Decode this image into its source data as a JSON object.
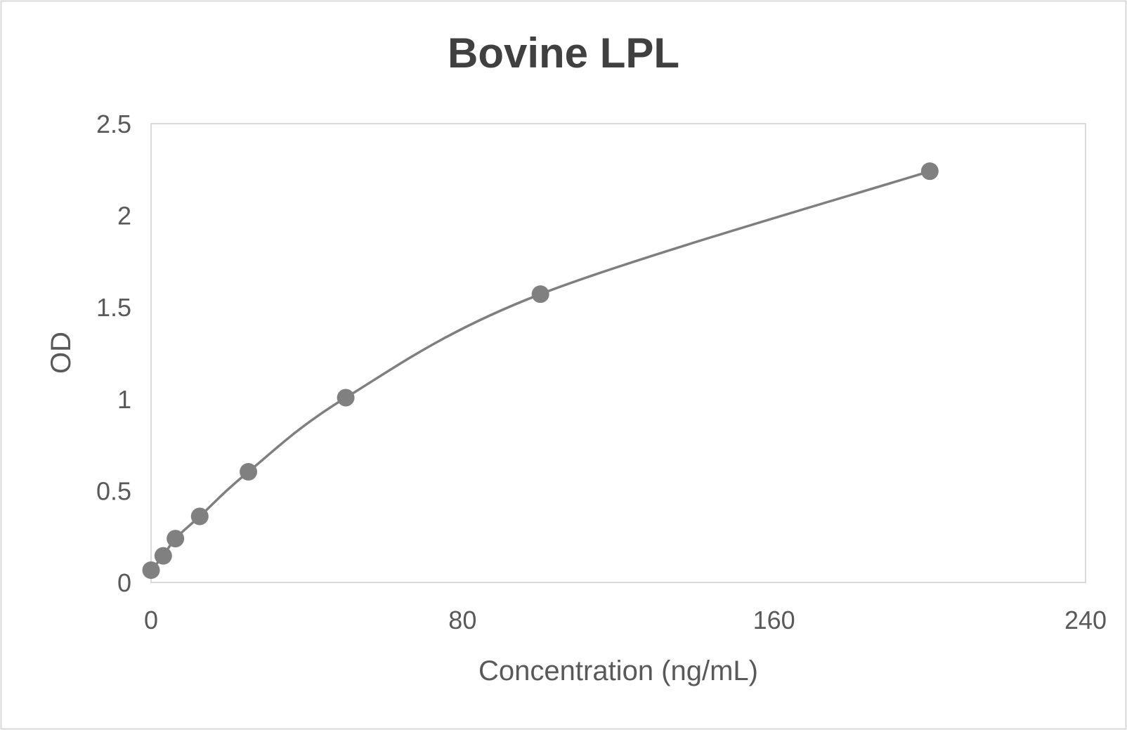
{
  "chart_data": {
    "type": "scatter",
    "title": "Bovine LPL",
    "xlabel": "Concentration (ng/mL)",
    "ylabel": "OD",
    "xlim": [
      0,
      240
    ],
    "ylim": [
      0,
      2.5
    ],
    "x_ticks": [
      "0",
      "80",
      "160",
      "240"
    ],
    "y_ticks": [
      "0",
      "0.5",
      "1",
      "1.5",
      "2",
      "2.5"
    ],
    "grid": false,
    "legend": "none",
    "smooth_line": true,
    "colors": {
      "series": "#7f7f7f",
      "marker": "#808080",
      "plot_border": "#d9d9d9",
      "text": "#595959"
    },
    "series": [
      {
        "x": [
          0,
          3.125,
          6.25,
          12.5,
          25,
          50,
          100,
          200
        ],
        "y": [
          0.067,
          0.145,
          0.239,
          0.36,
          0.603,
          1.007,
          1.571,
          2.241
        ]
      }
    ]
  }
}
